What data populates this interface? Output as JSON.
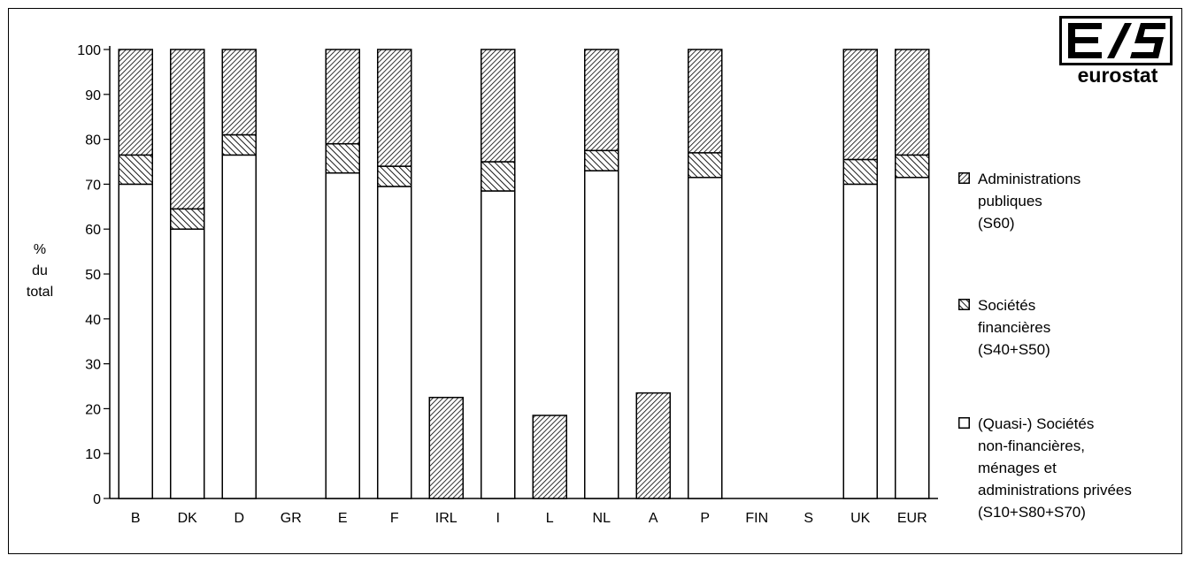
{
  "logo": {
    "wordmark": "eurostat"
  },
  "chart_data": {
    "type": "bar",
    "stacked": true,
    "ylabel": "% du total",
    "ylim": [
      0,
      100
    ],
    "yticks": [
      0,
      10,
      20,
      30,
      40,
      50,
      60,
      70,
      80,
      90,
      100
    ],
    "grid": false,
    "legend_position": "right",
    "categories": [
      "B",
      "DK",
      "D",
      "GR",
      "E",
      "F",
      "IRL",
      "I",
      "L",
      "NL",
      "A",
      "P",
      "FIN",
      "S",
      "UK",
      "EUR"
    ],
    "series": [
      {
        "name": "(Quasi-) Sociétés non-financières, ménages et administrations privées (S10+S80+S70)",
        "pattern": "white",
        "values": [
          70,
          60,
          76.5,
          null,
          72.5,
          69.5,
          null,
          68.5,
          null,
          73,
          null,
          71.5,
          null,
          null,
          70,
          71.5
        ]
      },
      {
        "name": "Sociétés financières (S40+S50)",
        "pattern": "dense-hatch",
        "values": [
          6.5,
          4.5,
          4.5,
          null,
          6.5,
          4.5,
          null,
          6.5,
          null,
          4.5,
          null,
          5.5,
          null,
          null,
          5.5,
          5
        ]
      },
      {
        "name": "Administrations publiques (S60)",
        "pattern": "fine-hatch",
        "values": [
          23.5,
          35.5,
          19,
          null,
          21,
          26,
          22.5,
          25,
          18.5,
          22.5,
          23.5,
          23,
          null,
          null,
          24.5,
          23.5
        ]
      }
    ]
  },
  "legend": [
    {
      "lines": [
        "Administrations",
        "publiques",
        "(S60)"
      ],
      "pattern": "fine-hatch"
    },
    {
      "lines": [
        "Sociétés",
        "financières",
        "(S40+S50)"
      ],
      "pattern": "dense-hatch"
    },
    {
      "lines": [
        "(Quasi-) Sociétés",
        "non-financières,",
        "ménages et",
        "administrations privées",
        "(S10+S80+S70)"
      ],
      "pattern": "white"
    }
  ]
}
